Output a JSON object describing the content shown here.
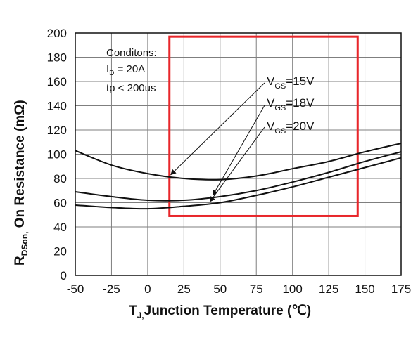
{
  "chart_data": {
    "type": "line",
    "x_label_main": "T",
    "x_label_sub": "J,",
    "x_label_rest": "Junction Temperature (℃)",
    "y_label_main": "R",
    "y_label_sub": "DSon,",
    "y_label_rest": " On Resistance (mΩ)",
    "xlim": [
      -50,
      175
    ],
    "ylim": [
      0,
      200
    ],
    "x_ticks": [
      -50,
      -25,
      0,
      25,
      50,
      75,
      100,
      125,
      150,
      175
    ],
    "y_ticks": [
      0,
      20,
      40,
      60,
      80,
      100,
      120,
      140,
      160,
      180,
      200
    ],
    "grid": true,
    "series": [
      {
        "name": "VGS=15V",
        "x": [
          -50,
          -25,
          0,
          25,
          50,
          75,
          100,
          125,
          150,
          175
        ],
        "y": [
          103,
          91,
          84,
          80,
          79,
          82,
          88,
          94,
          102,
          109
        ]
      },
      {
        "name": "VGS=18V",
        "x": [
          -50,
          -25,
          0,
          25,
          50,
          75,
          100,
          125,
          150,
          175
        ],
        "y": [
          69,
          65,
          62,
          62,
          65,
          70,
          77,
          85,
          94,
          102
        ]
      },
      {
        "name": "VGS=20V",
        "x": [
          -50,
          -25,
          0,
          25,
          50,
          75,
          100,
          125,
          150,
          175
        ],
        "y": [
          58,
          56,
          55,
          57,
          60,
          66,
          73,
          81,
          89,
          97
        ]
      }
    ],
    "conditions": {
      "title": "Conditons:",
      "line1_main": "I",
      "line1_sub": "D",
      "line1_rest": " = 20A",
      "line2": "tp < 200us"
    },
    "series_labels": [
      {
        "main": "V",
        "sub": "GS",
        "rest": "=15V"
      },
      {
        "main": "V",
        "sub": "GS",
        "rest": "=18V"
      },
      {
        "main": "V",
        "sub": "GS",
        "rest": "=20V"
      }
    ],
    "highlight_box": {
      "x0": 15,
      "x1": 145,
      "y0": 49,
      "y1": 197,
      "color": "#e8262a"
    },
    "line_color": "#111111",
    "grid_color": "#7f7f7f"
  }
}
